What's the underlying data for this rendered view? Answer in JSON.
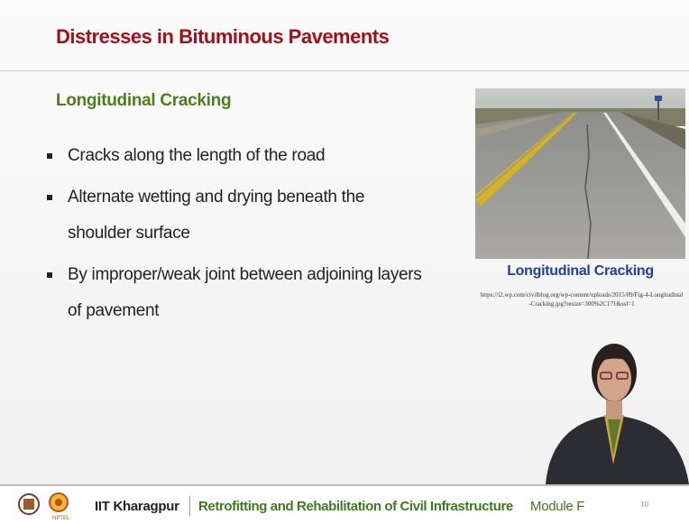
{
  "header": {
    "title": "Distresses in Bituminous Pavements"
  },
  "section": {
    "heading": "Longitudinal Cracking",
    "bullets": [
      "Cracks along the length of the road",
      "Alternate wetting and drying beneath the shoulder surface",
      "By improper/weak joint between adjoining layers of pavement"
    ]
  },
  "figure": {
    "caption": "Longitudinal Cracking",
    "source": "https://i2.wp.com/civilblog.org/wp-content/uploads/2015/09/Fig-4-Longitudinal-Cracking.jpg?resize=300%2C171&ssl=1"
  },
  "footer": {
    "institute": "IIT Kharagpur",
    "course": "Retrofitting and Rehabilitation of Civil Infrastructure",
    "module": "Module F",
    "page": "10"
  }
}
